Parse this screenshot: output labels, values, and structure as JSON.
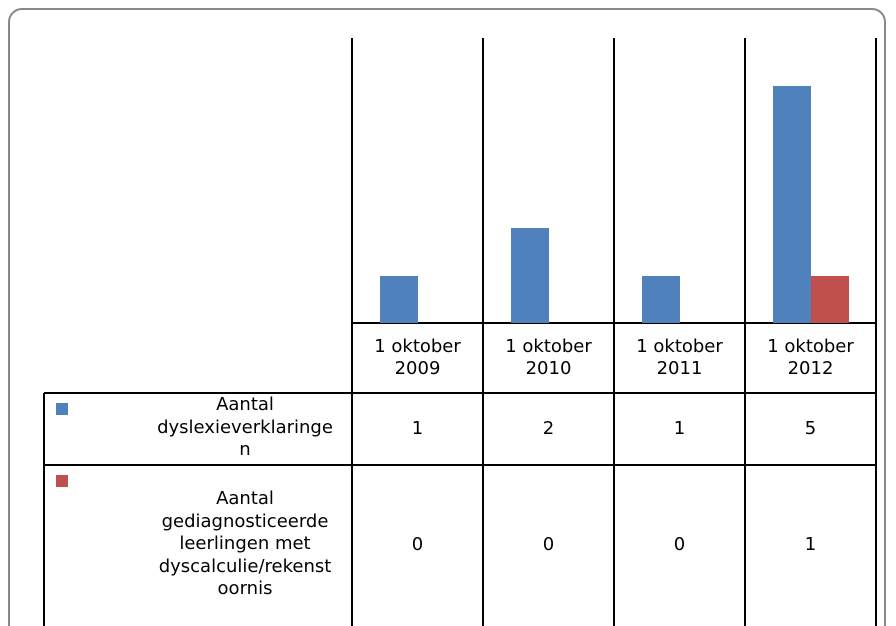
{
  "chart_data": {
    "type": "bar",
    "categories": [
      "1 oktober 2009",
      "1 oktober 2010",
      "1 oktober 2011",
      "1 oktober 2012"
    ],
    "series": [
      {
        "name": "Aantal dyslexieverklaringen",
        "color": "#4f81bd",
        "values": [
          1,
          2,
          1,
          5
        ]
      },
      {
        "name": "Aantal gediagnosticeerde leerlingen met dyscalculie/rekenstoornis",
        "color": "#c0504d",
        "values": [
          0,
          0,
          0,
          1
        ]
      }
    ],
    "ylim": [
      0,
      6
    ]
  }
}
